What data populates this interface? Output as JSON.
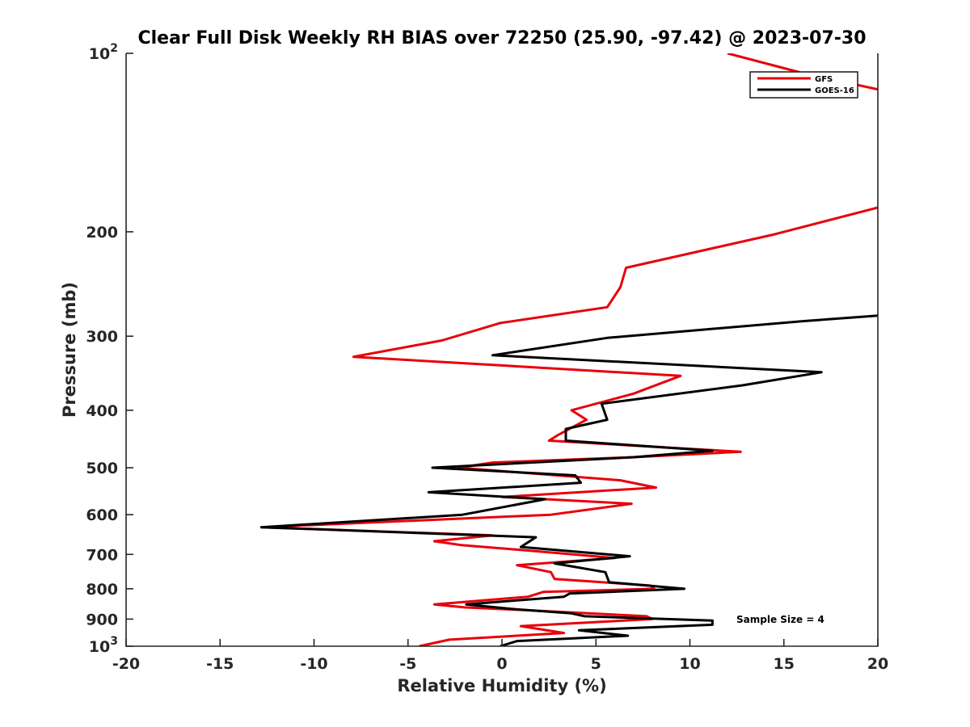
{
  "chart_data": {
    "type": "line",
    "title": "Clear Full Disk Weekly RH BIAS over 72250 (25.90, -97.42) @ 2023-07-30",
    "xlabel": "Relative Humidity (%)",
    "ylabel": "Pressure (mb)",
    "xlim": [
      -20,
      20
    ],
    "ylim": [
      100,
      1000
    ],
    "y_scale": "log",
    "y_reversed": true,
    "grid": false,
    "legend_position": "top-right",
    "x_ticks": [
      "-20",
      "-15",
      "-10",
      "-5",
      "0",
      "5",
      "10",
      "15",
      "20"
    ],
    "y_ticks": [
      {
        "value": 100,
        "base": "10",
        "exp": "2"
      },
      {
        "value": 200,
        "label": "200"
      },
      {
        "value": 300,
        "label": "300"
      },
      {
        "value": 400,
        "label": "400"
      },
      {
        "value": 500,
        "label": "500"
      },
      {
        "value": 600,
        "label": "600"
      },
      {
        "value": 700,
        "label": "700"
      },
      {
        "value": 800,
        "label": "800"
      },
      {
        "value": 900,
        "label": "900"
      },
      {
        "value": 1000,
        "base": "10",
        "exp": "3"
      }
    ],
    "annotation": "Sample Size = 4",
    "series": [
      {
        "name": "GFS",
        "color": "#e8000b",
        "points": [
          [
            -4.4,
            1000
          ],
          [
            -2.8,
            975
          ],
          [
            3.3,
            950
          ],
          [
            1.0,
            925
          ],
          [
            8.0,
            900
          ],
          [
            7.7,
            890
          ],
          [
            1.5,
            870
          ],
          [
            -2.0,
            860
          ],
          [
            -3.6,
            850
          ],
          [
            1.4,
            825
          ],
          [
            2.2,
            810
          ],
          [
            8.1,
            800
          ],
          [
            7.9,
            790
          ],
          [
            2.8,
            770
          ],
          [
            2.6,
            750
          ],
          [
            0.8,
            730
          ],
          [
            6.0,
            710
          ],
          [
            1.5,
            690
          ],
          [
            -2.2,
            675
          ],
          [
            -3.6,
            665
          ],
          [
            -0.5,
            650
          ],
          [
            -12.8,
            630
          ],
          [
            2.6,
            600
          ],
          [
            6.9,
            575
          ],
          [
            0.0,
            560
          ],
          [
            8.2,
            540
          ],
          [
            6.3,
            525
          ],
          [
            -2.3,
            500
          ],
          [
            -0.5,
            490
          ],
          [
            7.0,
            480
          ],
          [
            12.7,
            470
          ],
          [
            2.5,
            450
          ],
          [
            3.0,
            440
          ],
          [
            4.5,
            415
          ],
          [
            3.7,
            400
          ],
          [
            7.0,
            375
          ],
          [
            9.5,
            350
          ],
          [
            -7.9,
            325
          ],
          [
            -3.2,
            305
          ],
          [
            -0.1,
            285
          ],
          [
            5.6,
            268
          ],
          [
            6.3,
            248
          ],
          [
            6.6,
            230
          ],
          [
            14.5,
            202
          ],
          [
            20.0,
            182
          ]
        ],
        "upper_points": [
          [
            12.0,
            100
          ],
          [
            16.0,
            108
          ],
          [
            20.0,
            115
          ]
        ]
      },
      {
        "name": "GOES-16",
        "color": "#000000",
        "points": [
          [
            -0.1,
            1000
          ],
          [
            0.8,
            980
          ],
          [
            6.7,
            960
          ],
          [
            4.1,
            940
          ],
          [
            11.2,
            920
          ],
          [
            11.2,
            905
          ],
          [
            4.4,
            890
          ],
          [
            3.7,
            880
          ],
          [
            0.5,
            865
          ],
          [
            -1.9,
            850
          ],
          [
            3.3,
            825
          ],
          [
            3.6,
            815
          ],
          [
            9.7,
            800
          ],
          [
            5.7,
            780
          ],
          [
            5.5,
            750
          ],
          [
            2.8,
            725
          ],
          [
            6.8,
            705
          ],
          [
            1.0,
            680
          ],
          [
            1.8,
            655
          ],
          [
            -12.8,
            630
          ],
          [
            -2.1,
            600
          ],
          [
            2.3,
            565
          ],
          [
            -3.9,
            550
          ],
          [
            4.2,
            530
          ],
          [
            3.9,
            515
          ],
          [
            -3.7,
            500
          ],
          [
            7.0,
            480
          ],
          [
            11.2,
            468
          ],
          [
            3.4,
            450
          ],
          [
            3.4,
            430
          ],
          [
            5.6,
            415
          ],
          [
            5.3,
            390
          ],
          [
            12.8,
            363
          ],
          [
            17.0,
            345
          ],
          [
            -0.5,
            323
          ],
          [
            5.6,
            302
          ],
          [
            16.0,
            283
          ],
          [
            20.0,
            277
          ]
        ]
      }
    ]
  }
}
